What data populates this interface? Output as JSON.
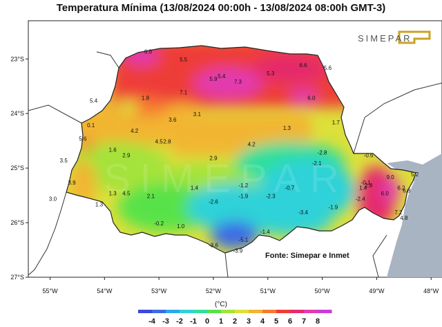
{
  "title": "Temperatura Mínima (13/08/2024 00:00h - 13/08/2024 08:00h GMT-3)",
  "logo_text": "SIMEPAR",
  "source": "Fonte: Simepar e Inmet",
  "unit": "(°C)",
  "colors": {
    "ocean": "#a9b4c2",
    "land": "#ffffff",
    "border": "#333333"
  },
  "legend": {
    "labels": [
      "-4",
      "-3",
      "-2",
      "-1",
      "0",
      "1",
      "2",
      "3",
      "4",
      "5",
      "6",
      "7",
      "8"
    ],
    "colors": [
      "#3b49d8",
      "#3d6be6",
      "#2ea7ec",
      "#2fd2d8",
      "#2fdf9c",
      "#58e24a",
      "#a4e33a",
      "#dde03a",
      "#f2b532",
      "#f57a33",
      "#ee3c38",
      "#e52c6a",
      "#e23ab0",
      "#c83bd8"
    ]
  },
  "chart_data": {
    "type": "heatmap",
    "lat_labels": [
      "23°S",
      "24°S",
      "25°S",
      "26°S",
      "27°S"
    ],
    "lon_labels": [
      "55°W",
      "54°W",
      "53°W",
      "52°W",
      "51°W",
      "50°W",
      "49°W",
      "48°W"
    ],
    "xlim": [
      -55.4,
      -47.8
    ],
    "ylim": [
      -27.0,
      -22.3
    ],
    "stations": [
      {
        "lon": -53.2,
        "lat": -22.9,
        "v": "6.9"
      },
      {
        "lon": -52.55,
        "lat": -23.05,
        "v": "5.5"
      },
      {
        "lon": -51.85,
        "lat": -23.35,
        "v": "5.4"
      },
      {
        "lon": -52.0,
        "lat": -23.4,
        "v": "5.9"
      },
      {
        "lon": -51.55,
        "lat": -23.45,
        "v": "7.3"
      },
      {
        "lon": -50.95,
        "lat": -23.3,
        "v": "5.3"
      },
      {
        "lon": -50.35,
        "lat": -23.15,
        "v": "6.6"
      },
      {
        "lon": -49.9,
        "lat": -23.2,
        "v": "5.6"
      },
      {
        "lon": -52.55,
        "lat": -23.65,
        "v": "7.1"
      },
      {
        "lon": -53.25,
        "lat": -23.75,
        "v": "1.8"
      },
      {
        "lon": -54.2,
        "lat": -23.8,
        "v": "5.4"
      },
      {
        "lon": -50.2,
        "lat": -23.75,
        "v": "6.0"
      },
      {
        "lon": -52.3,
        "lat": -24.05,
        "v": "3.1"
      },
      {
        "lon": -52.75,
        "lat": -24.15,
        "v": "3.6"
      },
      {
        "lon": -54.25,
        "lat": -24.25,
        "v": "0.1"
      },
      {
        "lon": -53.45,
        "lat": -24.35,
        "v": "4.2"
      },
      {
        "lon": -50.65,
        "lat": -24.3,
        "v": "1.3"
      },
      {
        "lon": -49.75,
        "lat": -24.2,
        "v": "1.7"
      },
      {
        "lon": -54.4,
        "lat": -24.5,
        "v": "5.6"
      },
      {
        "lon": -53.0,
        "lat": -24.55,
        "v": "4.5"
      },
      {
        "lon": -52.85,
        "lat": -24.55,
        "v": "2.8"
      },
      {
        "lon": -51.3,
        "lat": -24.6,
        "v": "4.2"
      },
      {
        "lon": -53.85,
        "lat": -24.7,
        "v": "1.6"
      },
      {
        "lon": -53.6,
        "lat": -24.8,
        "v": "2.9"
      },
      {
        "lon": -52.0,
        "lat": -24.85,
        "v": "2.9"
      },
      {
        "lon": -50.0,
        "lat": -24.75,
        "v": "-2.8"
      },
      {
        "lon": -49.15,
        "lat": -24.8,
        "v": "-0.6"
      },
      {
        "lon": -54.75,
        "lat": -24.9,
        "v": "3.5"
      },
      {
        "lon": -50.1,
        "lat": -24.95,
        "v": "-2.1"
      },
      {
        "lon": -54.6,
        "lat": -25.3,
        "v": "3.9"
      },
      {
        "lon": -51.45,
        "lat": -25.35,
        "v": "-1.2"
      },
      {
        "lon": -52.35,
        "lat": -25.4,
        "v": "1.4"
      },
      {
        "lon": -50.6,
        "lat": -25.4,
        "v": "-0.7"
      },
      {
        "lon": -48.75,
        "lat": -25.2,
        "v": "9.0"
      },
      {
        "lon": -48.3,
        "lat": -25.15,
        "v": "5.2"
      },
      {
        "lon": -49.2,
        "lat": -25.3,
        "v": "-0.1"
      },
      {
        "lon": -49.15,
        "lat": -25.35,
        "v": "2.8"
      },
      {
        "lon": -49.25,
        "lat": -25.4,
        "v": "1.4"
      },
      {
        "lon": -48.55,
        "lat": -25.4,
        "v": "6.2"
      },
      {
        "lon": -48.45,
        "lat": -25.45,
        "v": "6.8"
      },
      {
        "lon": -48.85,
        "lat": -25.5,
        "v": "6.0"
      },
      {
        "lon": -53.85,
        "lat": -25.5,
        "v": "1.3"
      },
      {
        "lon": -53.6,
        "lat": -25.5,
        "v": "4.5"
      },
      {
        "lon": -53.15,
        "lat": -25.55,
        "v": "2.1"
      },
      {
        "lon": -54.95,
        "lat": -25.6,
        "v": "3.0"
      },
      {
        "lon": -51.45,
        "lat": -25.55,
        "v": "-1.9"
      },
      {
        "lon": -50.95,
        "lat": -25.55,
        "v": "-2.3"
      },
      {
        "lon": -49.3,
        "lat": -25.6,
        "v": "-2.4"
      },
      {
        "lon": -52.0,
        "lat": -25.65,
        "v": "-2.6"
      },
      {
        "lon": -54.1,
        "lat": -25.7,
        "v": "1.3"
      },
      {
        "lon": -49.8,
        "lat": -25.75,
        "v": "-1.9"
      },
      {
        "lon": -50.35,
        "lat": -25.85,
        "v": "-3.4"
      },
      {
        "lon": -48.6,
        "lat": -25.85,
        "v": "7.2"
      },
      {
        "lon": -48.5,
        "lat": -25.95,
        "v": "4.8"
      },
      {
        "lon": -53.0,
        "lat": -26.05,
        "v": "-0.2"
      },
      {
        "lon": -52.6,
        "lat": -26.1,
        "v": "1.0"
      },
      {
        "lon": -51.05,
        "lat": -26.2,
        "v": "-1.4"
      },
      {
        "lon": -51.45,
        "lat": -26.35,
        "v": "-5.1"
      },
      {
        "lon": -52.0,
        "lat": -26.45,
        "v": "-3.6"
      },
      {
        "lon": -51.55,
        "lat": -26.55,
        "v": "-3.9"
      }
    ]
  }
}
